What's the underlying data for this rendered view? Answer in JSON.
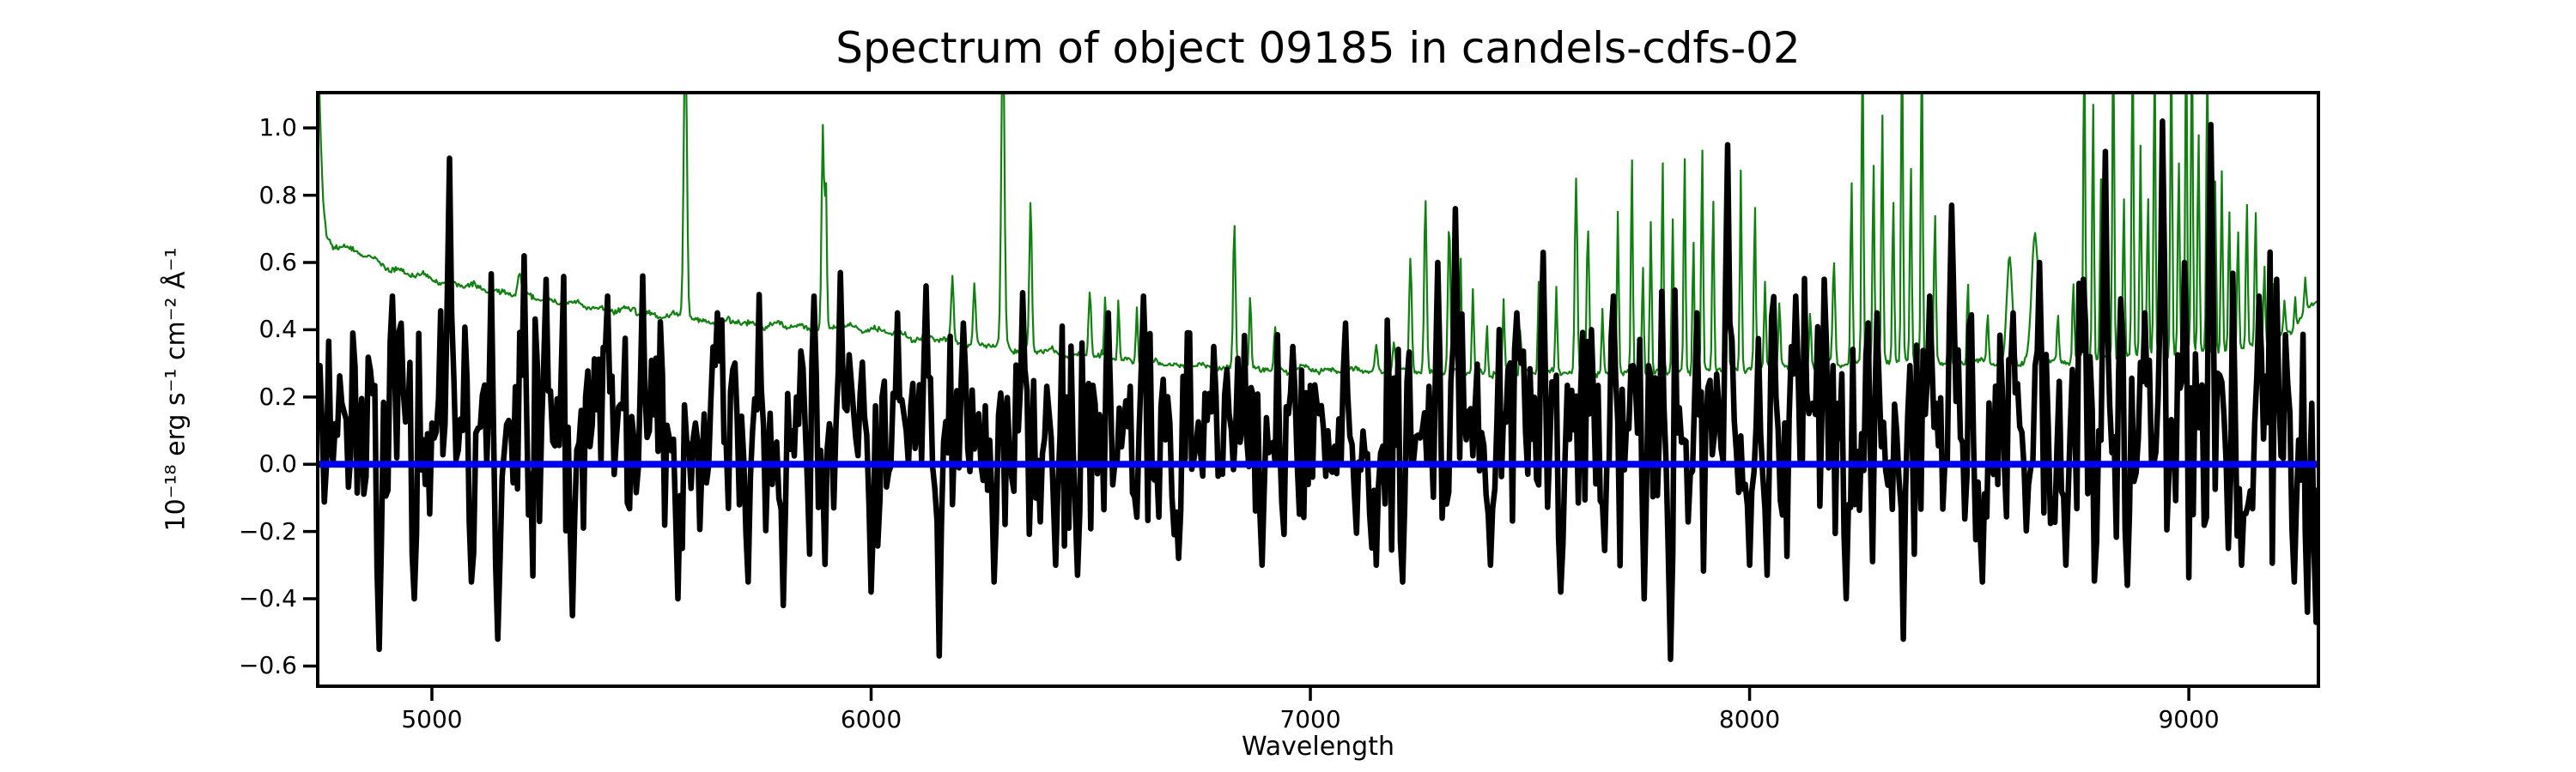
{
  "figure": {
    "title": "Spectrum of object 09185 in candels-cdfs-02",
    "xlabel": "Wavelength",
    "ylabel": "10⁻¹⁸ erg s⁻¹ cm⁻² Å⁻¹"
  },
  "axes": {
    "xlim": [
      4740,
      9295
    ],
    "ylim": [
      -0.66,
      1.105
    ],
    "x_ticks": [
      {
        "label": "5000",
        "value": 5000
      },
      {
        "label": "6000",
        "value": 6000
      },
      {
        "label": "7000",
        "value": 7000
      },
      {
        "label": "8000",
        "value": 8000
      },
      {
        "label": "9000",
        "value": 9000
      }
    ],
    "y_ticks": [
      {
        "label": "1.0",
        "value": 1.0
      },
      {
        "label": "0.8",
        "value": 0.8
      },
      {
        "label": "0.6",
        "value": 0.6
      },
      {
        "label": "0.4",
        "value": 0.4
      },
      {
        "label": "0.2",
        "value": 0.2
      },
      {
        "label": "0.0",
        "value": 0.0
      },
      {
        "label": "−0.2",
        "value": -0.2
      },
      {
        "label": "−0.4",
        "value": -0.4
      },
      {
        "label": "−0.6",
        "value": -0.6
      }
    ]
  },
  "colors": {
    "background": "#ffffff",
    "frame": "#000000",
    "flux_line": "#000000",
    "noise_line": "#108010",
    "zero_line": "#0000ee"
  },
  "chart_data": {
    "type": "line",
    "title": "Spectrum of object 09185 in candels-cdfs-02",
    "xlabel": "Wavelength",
    "ylabel": "10⁻¹⁸ erg s⁻¹ cm⁻² Å⁻¹",
    "xlim": [
      4740,
      9295
    ],
    "ylim": [
      -0.66,
      1.105
    ],
    "grid": false,
    "legend": "none",
    "series": [
      {
        "name": "flux-spectrum",
        "color": "#000000",
        "line_width": 6.5,
        "kind": "noisy-spectrum",
        "seed": 9185,
        "step": 5,
        "mean_anchors": [
          [
            4740,
            0.1
          ],
          [
            5200,
            0.12
          ],
          [
            5800,
            0.1
          ],
          [
            6300,
            0.09
          ],
          [
            6800,
            0.08
          ],
          [
            7300,
            0.09
          ],
          [
            7800,
            0.1
          ],
          [
            8300,
            0.12
          ],
          [
            8800,
            0.13
          ],
          [
            9295,
            0.13
          ]
        ],
        "std_anchors": [
          [
            4740,
            0.2
          ],
          [
            5000,
            0.21
          ],
          [
            5500,
            0.18
          ],
          [
            6000,
            0.17
          ],
          [
            6500,
            0.14
          ],
          [
            6900,
            0.13
          ],
          [
            7200,
            0.15
          ],
          [
            7500,
            0.16
          ],
          [
            7800,
            0.18
          ],
          [
            8100,
            0.19
          ],
          [
            8400,
            0.2
          ],
          [
            8800,
            0.21
          ],
          [
            9295,
            0.22
          ]
        ],
        "features": [
          [
            4880,
            -0.55
          ],
          [
            4910,
            0.5
          ],
          [
            4960,
            -0.4
          ],
          [
            5040,
            0.91
          ],
          [
            5090,
            -0.35
          ],
          [
            5150,
            -0.52
          ],
          [
            5210,
            0.62
          ],
          [
            5260,
            0.55
          ],
          [
            5320,
            -0.45
          ],
          [
            5400,
            0.5
          ],
          [
            5480,
            0.56
          ],
          [
            5560,
            -0.4
          ],
          [
            5650,
            0.45
          ],
          [
            5720,
            -0.35
          ],
          [
            5800,
            -0.42
          ],
          [
            5870,
            0.5
          ],
          [
            5930,
            0.57
          ],
          [
            6000,
            -0.38
          ],
          [
            6060,
            0.45
          ],
          [
            6123,
            0.53
          ],
          [
            6155,
            -0.57
          ],
          [
            6210,
            0.42
          ],
          [
            6280,
            -0.35
          ],
          [
            6346,
            0.51
          ],
          [
            6420,
            -0.3
          ],
          [
            6470,
            -0.33
          ],
          [
            6540,
            0.45
          ],
          [
            6620,
            0.5
          ],
          [
            6700,
            -0.28
          ],
          [
            6780,
            0.35
          ],
          [
            6890,
            -0.3
          ],
          [
            6960,
            0.35
          ],
          [
            7080,
            0.42
          ],
          [
            7150,
            -0.3
          ],
          [
            7210,
            -0.35
          ],
          [
            7290,
            0.6
          ],
          [
            7332,
            0.76
          ],
          [
            7410,
            -0.3
          ],
          [
            7470,
            0.45
          ],
          [
            7532,
            0.63
          ],
          [
            7572,
            -0.38
          ],
          [
            7640,
            0.4
          ],
          [
            7690,
            0.5
          ],
          [
            7760,
            -0.4
          ],
          [
            7822,
            -0.58
          ],
          [
            7880,
            0.45
          ],
          [
            7950,
            0.95
          ],
          [
            8000,
            -0.3
          ],
          [
            8042,
            -0.33
          ],
          [
            8105,
            0.5
          ],
          [
            8172,
            0.55
          ],
          [
            8222,
            -0.4
          ],
          [
            8290,
            0.45
          ],
          [
            8352,
            -0.52
          ],
          [
            8412,
            0.5
          ],
          [
            8462,
            0.77
          ],
          [
            8532,
            -0.35
          ],
          [
            8600,
            0.45
          ],
          [
            8662,
            0.6
          ],
          [
            8720,
            -0.3
          ],
          [
            8762,
            0.55
          ],
          [
            8812,
            0.93
          ],
          [
            8862,
            -0.36
          ],
          [
            8902,
            0.45
          ],
          [
            8942,
            1.02
          ],
          [
            8992,
            0.6
          ],
          [
            9048,
            1.01
          ],
          [
            9092,
            -0.25
          ],
          [
            9122,
            -0.3
          ],
          [
            9162,
            0.5
          ],
          [
            9202,
            0.55
          ],
          [
            9242,
            -0.35
          ],
          [
            9272,
            -0.44
          ],
          [
            9292,
            -0.47
          ]
        ]
      },
      {
        "name": "noise-spectrum",
        "color": "#108010",
        "line_width": 2.2,
        "kind": "sky-spectrum",
        "seed": 777,
        "step": 2.5,
        "jitter": 0.005,
        "baseline_anchors": [
          [
            4740,
            1.3
          ],
          [
            4746,
            1.0
          ],
          [
            4752,
            0.78
          ],
          [
            4760,
            0.67
          ],
          [
            4775,
            0.655
          ],
          [
            4800,
            0.648
          ],
          [
            4830,
            0.632
          ],
          [
            4860,
            0.61
          ],
          [
            4900,
            0.588
          ],
          [
            4950,
            0.565
          ],
          [
            5000,
            0.553
          ],
          [
            5050,
            0.54
          ],
          [
            5100,
            0.525
          ],
          [
            5150,
            0.515
          ],
          [
            5200,
            0.505
          ],
          [
            5250,
            0.492
          ],
          [
            5300,
            0.48
          ],
          [
            5350,
            0.47
          ],
          [
            5400,
            0.462
          ],
          [
            5450,
            0.452
          ],
          [
            5500,
            0.445
          ],
          [
            5550,
            0.44
          ],
          [
            5600,
            0.432
          ],
          [
            5650,
            0.427
          ],
          [
            5700,
            0.422
          ],
          [
            5750,
            0.416
          ],
          [
            5800,
            0.412
          ],
          [
            5850,
            0.408
          ],
          [
            5900,
            0.405
          ],
          [
            5950,
            0.41
          ],
          [
            6000,
            0.4
          ],
          [
            6050,
            0.39
          ],
          [
            6100,
            0.378
          ],
          [
            6150,
            0.37
          ],
          [
            6200,
            0.362
          ],
          [
            6250,
            0.355
          ],
          [
            6300,
            0.35
          ],
          [
            6350,
            0.34
          ],
          [
            6400,
            0.333
          ],
          [
            6450,
            0.328
          ],
          [
            6500,
            0.322
          ],
          [
            6550,
            0.315
          ],
          [
            6600,
            0.308
          ],
          [
            6650,
            0.3
          ],
          [
            6700,
            0.294
          ],
          [
            6750,
            0.29
          ],
          [
            6800,
            0.287
          ],
          [
            6850,
            0.284
          ],
          [
            6900,
            0.282
          ],
          [
            7000,
            0.28
          ],
          [
            7100,
            0.278
          ],
          [
            7200,
            0.276
          ],
          [
            7300,
            0.274
          ],
          [
            7400,
            0.272
          ],
          [
            7500,
            0.271
          ],
          [
            7600,
            0.27
          ],
          [
            7700,
            0.269
          ],
          [
            7800,
            0.272
          ],
          [
            7900,
            0.278
          ],
          [
            8000,
            0.285
          ],
          [
            8100,
            0.292
          ],
          [
            8200,
            0.3
          ],
          [
            8300,
            0.306
          ],
          [
            8400,
            0.31
          ],
          [
            8500,
            0.302
          ],
          [
            8600,
            0.3
          ],
          [
            8700,
            0.308
          ],
          [
            8800,
            0.315
          ],
          [
            8900,
            0.322
          ],
          [
            9000,
            0.33
          ],
          [
            9100,
            0.342
          ],
          [
            9150,
            0.352
          ],
          [
            9200,
            0.372
          ],
          [
            9240,
            0.4
          ],
          [
            9270,
            0.46
          ],
          [
            9295,
            0.5
          ]
        ],
        "spikes": [
          [
            5199,
            0.57,
            5
          ],
          [
            5460,
            0.465,
            4
          ],
          [
            5577,
            1.3,
            5
          ],
          [
            5890,
            1.0,
            4
          ],
          [
            5897,
            0.82,
            3
          ],
          [
            6185,
            0.55,
            4
          ],
          [
            6235,
            0.53,
            4
          ],
          [
            6300,
            1.3,
            5
          ],
          [
            6363,
            0.78,
            4
          ],
          [
            6498,
            0.52,
            4
          ],
          [
            6533,
            0.49,
            3
          ],
          [
            6563,
            0.5,
            3
          ],
          [
            6605,
            0.47,
            3
          ],
          [
            6827,
            0.72,
            4
          ],
          [
            6863,
            0.5,
            3
          ],
          [
            6920,
            0.4,
            4
          ],
          [
            7150,
            0.35,
            4
          ],
          [
            7190,
            0.37,
            4
          ],
          [
            7228,
            0.62,
            4
          ],
          [
            7262,
            0.78,
            4
          ],
          [
            7292,
            0.55,
            3
          ],
          [
            7316,
            0.72,
            4
          ],
          [
            7342,
            0.62,
            3
          ],
          [
            7370,
            0.52,
            3
          ],
          [
            7402,
            0.42,
            3
          ],
          [
            7440,
            0.48,
            3
          ],
          [
            7478,
            0.4,
            3
          ],
          [
            7520,
            0.55,
            3
          ],
          [
            7560,
            0.52,
            3
          ],
          [
            7605,
            0.85,
            4
          ],
          [
            7632,
            0.72,
            4
          ],
          [
            7665,
            0.45,
            3
          ],
          [
            7700,
            0.75,
            3
          ],
          [
            7732,
            0.92,
            3
          ],
          [
            7757,
            0.6,
            3
          ],
          [
            7775,
            0.72,
            3
          ],
          [
            7802,
            0.92,
            3
          ],
          [
            7825,
            0.72,
            3
          ],
          [
            7852,
            0.92,
            3
          ],
          [
            7872,
            0.68,
            3
          ],
          [
            7892,
            0.95,
            3
          ],
          [
            7917,
            0.8,
            3
          ],
          [
            7950,
            0.7,
            3
          ],
          [
            7980,
            0.88,
            3
          ],
          [
            8012,
            0.77,
            3
          ],
          [
            8035,
            0.55,
            3
          ],
          [
            8068,
            0.48,
            3
          ],
          [
            8102,
            0.5,
            3
          ],
          [
            8138,
            0.45,
            3
          ],
          [
            8192,
            0.6,
            4
          ],
          [
            8232,
            0.85,
            3
          ],
          [
            8257,
            1.3,
            3
          ],
          [
            8282,
            0.9,
            3
          ],
          [
            8302,
            1.05,
            3
          ],
          [
            8327,
            0.8,
            3
          ],
          [
            8347,
            1.35,
            3
          ],
          [
            8367,
            0.9,
            3
          ],
          [
            8392,
            1.3,
            3
          ],
          [
            8422,
            0.75,
            3
          ],
          [
            8455,
            0.72,
            3
          ],
          [
            8497,
            0.55,
            3
          ],
          [
            8542,
            0.45,
            3
          ],
          [
            8592,
            0.62,
            9
          ],
          [
            8650,
            0.68,
            11
          ],
          [
            8702,
            0.45,
            3
          ],
          [
            8737,
            0.55,
            3
          ],
          [
            8762,
            1.3,
            3
          ],
          [
            8782,
            1.1,
            3
          ],
          [
            8800,
            0.85,
            3
          ],
          [
            8828,
            1.35,
            3
          ],
          [
            8852,
            0.8,
            3
          ],
          [
            8872,
            1.3,
            3
          ],
          [
            8890,
            0.95,
            3
          ],
          [
            8907,
            0.8,
            3
          ],
          [
            8922,
            1.25,
            3
          ],
          [
            8942,
            0.85,
            3
          ],
          [
            8960,
            1.3,
            3
          ],
          [
            8977,
            0.9,
            3
          ],
          [
            8994,
            1.3,
            3
          ],
          [
            9007,
            1.35,
            3
          ],
          [
            9022,
            1.0,
            3
          ],
          [
            9042,
            1.25,
            3
          ],
          [
            9060,
            0.85,
            3
          ],
          [
            9075,
            0.88,
            3
          ],
          [
            9092,
            0.75,
            3
          ],
          [
            9112,
            0.7,
            3
          ],
          [
            9132,
            0.78,
            3
          ],
          [
            9152,
            0.75,
            3
          ],
          [
            9172,
            0.6,
            3
          ],
          [
            9192,
            0.55,
            3
          ],
          [
            9218,
            0.48,
            3
          ],
          [
            9242,
            0.5,
            3
          ],
          [
            9265,
            0.55,
            3
          ]
        ]
      },
      {
        "name": "zero-flux-line",
        "color": "#0000ee",
        "line_width": 8,
        "kind": "hline",
        "y": 0.0
      }
    ]
  }
}
